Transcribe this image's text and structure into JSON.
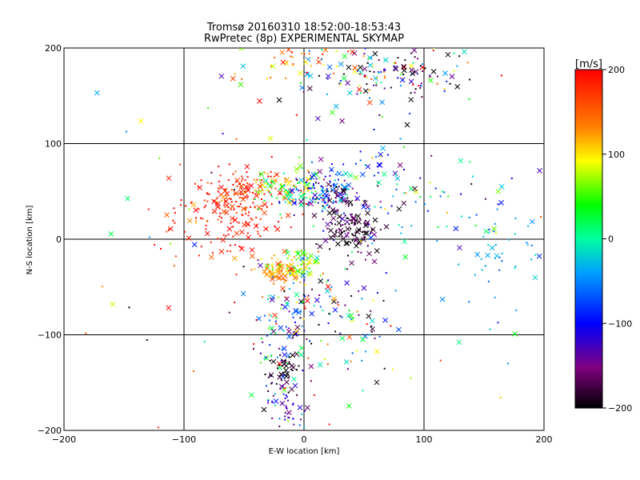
{
  "chart_data": {
    "type": "scatter",
    "title": "Tromsø 20160310 18:52:00-18:53:43",
    "subtitle": "RwPretec (8p) EXPERIMENTAL SKYMAP",
    "xlabel": "E-W location [km]",
    "ylabel": "N-S location [km]",
    "xlim": [
      -200,
      200
    ],
    "ylim": [
      -200,
      200
    ],
    "xticks": [
      -200,
      -100,
      0,
      100,
      200
    ],
    "yticks": [
      -200,
      -100,
      0,
      100,
      200
    ],
    "grid": true,
    "colorbar": {
      "label": "[m/s]",
      "min": -200,
      "max": 200,
      "ticks": [
        200,
        100,
        0,
        -100,
        -200
      ],
      "colormap": "black-purple-blue-cyan-green-yellow-red"
    },
    "marker_types": [
      "x",
      "dot"
    ],
    "clusters": [
      {
        "x": -50,
        "y": 50,
        "sx": 18,
        "sy": 12,
        "n": 120,
        "v": 180,
        "vs": 30
      },
      {
        "x": -28,
        "y": 55,
        "sx": 10,
        "sy": 8,
        "n": 40,
        "v": 110,
        "vs": 40
      },
      {
        "x": -10,
        "y": 50,
        "sx": 14,
        "sy": 10,
        "n": 70,
        "v": 40,
        "vs": 50
      },
      {
        "x": 15,
        "y": 50,
        "sx": 14,
        "sy": 12,
        "n": 110,
        "v": -90,
        "vs": 50
      },
      {
        "x": 40,
        "y": 10,
        "sx": 14,
        "sy": 12,
        "n": 110,
        "v": -180,
        "vs": 25
      },
      {
        "x": 30,
        "y": 40,
        "sx": 12,
        "sy": 10,
        "n": 40,
        "v": -170,
        "vs": 30
      },
      {
        "x": -20,
        "y": -35,
        "sx": 10,
        "sy": 8,
        "n": 80,
        "v": 120,
        "vs": 30
      },
      {
        "x": 0,
        "y": -25,
        "sx": 10,
        "sy": 8,
        "n": 50,
        "v": 60,
        "vs": 40
      },
      {
        "x": -60,
        "y": 15,
        "sx": 22,
        "sy": 20,
        "n": 80,
        "v": 190,
        "vs": 20
      },
      {
        "x": -80,
        "y": 30,
        "sx": 20,
        "sy": 20,
        "n": 40,
        "v": 170,
        "vs": 40
      },
      {
        "x": 60,
        "y": 170,
        "sx": 40,
        "sy": 18,
        "n": 120,
        "v": 0,
        "vs": 140
      },
      {
        "x": 80,
        "y": 175,
        "sx": 25,
        "sy": 15,
        "n": 50,
        "v": -180,
        "vs": 30
      },
      {
        "x": -10,
        "y": 185,
        "sx": 30,
        "sy": 12,
        "n": 40,
        "v": 140,
        "vs": 50
      },
      {
        "x": -20,
        "y": -110,
        "sx": 10,
        "sy": 30,
        "n": 60,
        "v": -20,
        "vs": 80
      },
      {
        "x": -15,
        "y": -140,
        "sx": 8,
        "sy": 12,
        "n": 40,
        "v": -190,
        "vs": 15
      },
      {
        "x": -15,
        "y": -175,
        "sx": 10,
        "sy": 15,
        "n": 50,
        "v": -120,
        "vs": 40
      },
      {
        "x": 40,
        "y": -110,
        "sx": 30,
        "sy": 30,
        "n": 40,
        "v": 30,
        "vs": 120
      },
      {
        "x": 25,
        "y": -80,
        "sx": 25,
        "sy": 20,
        "n": 50,
        "v": -120,
        "vs": 80
      },
      {
        "x": 0,
        "y": -70,
        "sx": 20,
        "sy": 20,
        "n": 40,
        "v": 10,
        "vs": 100
      },
      {
        "x": 160,
        "y": -20,
        "sx": 25,
        "sy": 25,
        "n": 45,
        "v": -40,
        "vs": 20
      },
      {
        "x": 100,
        "y": 30,
        "sx": 50,
        "sy": 30,
        "n": 50,
        "v": -40,
        "vs": 80
      },
      {
        "x": 70,
        "y": 60,
        "sx": 25,
        "sy": 25,
        "n": 40,
        "v": -60,
        "vs": 80
      },
      {
        "x": 0,
        "y": 0,
        "sx": 120,
        "sy": 120,
        "n": 100,
        "v": 0,
        "vs": 140
      }
    ]
  }
}
